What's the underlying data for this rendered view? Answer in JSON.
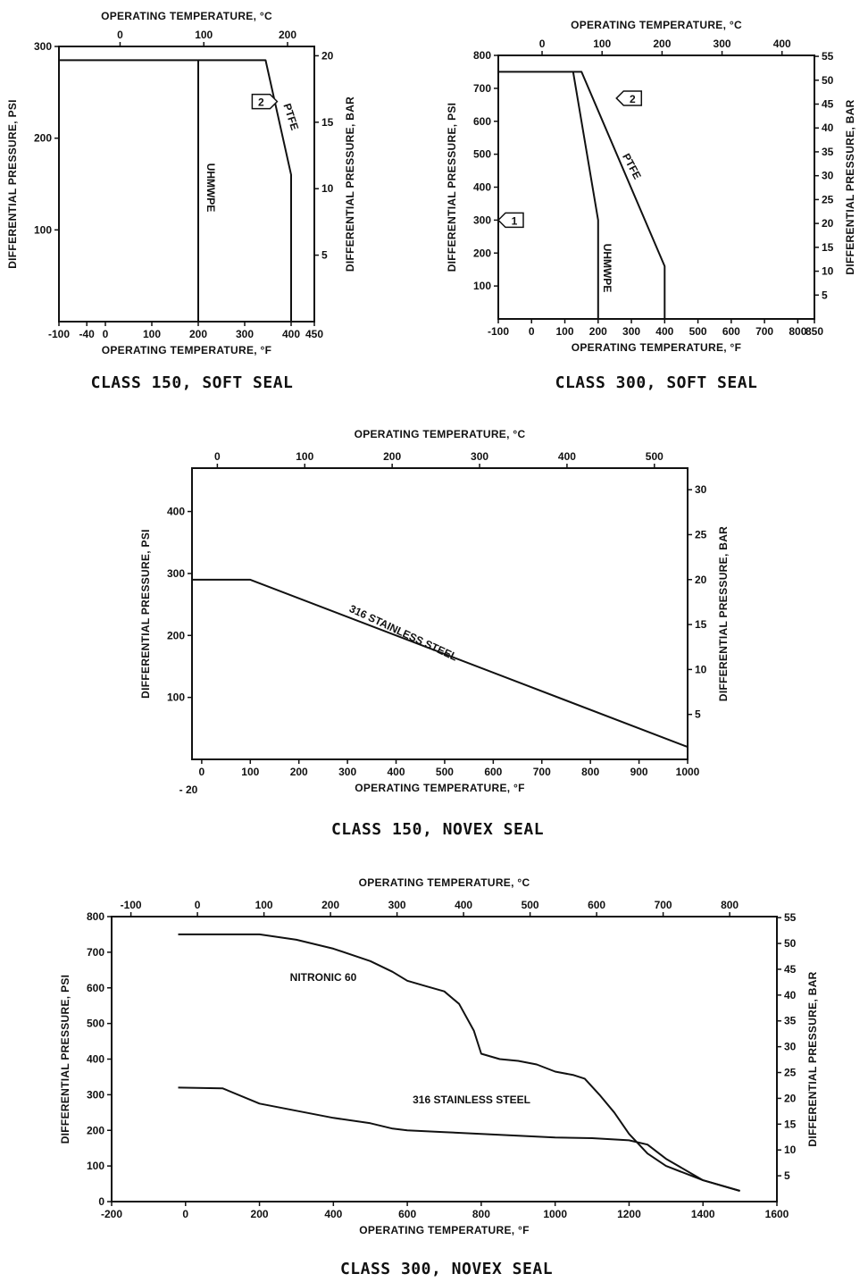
{
  "chart_data": [
    {
      "id": "c1",
      "type": "line",
      "caption": "CLASS 150, SOFT SEAL",
      "xlabel": "OPERATING TEMPERATURE, °F",
      "x2label": "OPERATING TEMPERATURE, °C",
      "ylabel": "DIFFERENTIAL PRESSURE, PSI",
      "y2label": "DIFFERENTIAL PRESSURE, BAR",
      "xlim": [
        -100,
        450
      ],
      "ylim": [
        0,
        300
      ],
      "x2lim": [
        -73,
        232
      ],
      "y2lim": [
        0,
        20.7
      ],
      "xticks": [
        {
          "v": -100,
          "label": "-100"
        },
        {
          "v": -40,
          "label": "-40"
        },
        {
          "v": 0,
          "label": "0"
        },
        {
          "v": 100,
          "label": "100"
        },
        {
          "v": 200,
          "label": "200"
        },
        {
          "v": 300,
          "label": "300"
        },
        {
          "v": 400,
          "label": "400"
        },
        {
          "v": 450,
          "label": "450"
        }
      ],
      "yticks": [
        {
          "v": 100,
          "label": "100"
        },
        {
          "v": 200,
          "label": "200"
        },
        {
          "v": 300,
          "label": "300"
        }
      ],
      "x2ticks": [
        {
          "v": 0,
          "label": "0"
        },
        {
          "v": 100,
          "label": "100"
        },
        {
          "v": 200,
          "label": "200"
        }
      ],
      "y2ticks": [
        {
          "v": 5,
          "label": "5"
        },
        {
          "v": 10,
          "label": "10"
        },
        {
          "v": 15,
          "label": "15"
        },
        {
          "v": 20,
          "label": "20"
        }
      ],
      "series": [
        {
          "name": "UHMWPE",
          "x": [
            -100,
            -100,
            200,
            200
          ],
          "y": [
            0,
            285,
            285,
            0
          ]
        },
        {
          "name": "PTFE",
          "x": [
            200,
            345,
            400,
            400
          ],
          "y": [
            285,
            285,
            160,
            0
          ]
        }
      ],
      "annotations": [
        {
          "text": "2",
          "x": 370,
          "y": 240
        }
      ]
    },
    {
      "id": "c2",
      "type": "line",
      "caption": "CLASS 300, SOFT SEAL",
      "xlabel": "OPERATING TEMPERATURE, °F",
      "x2label": "OPERATING TEMPERATURE, °C",
      "ylabel": "DIFFERENTIAL PRESSURE, PSI",
      "y2label": "DIFFERENTIAL PRESSURE, BAR",
      "xlim": [
        -100,
        850
      ],
      "ylim": [
        0,
        800
      ],
      "x2lim": [
        -73,
        454
      ],
      "y2lim": [
        0,
        55.2
      ],
      "xticks": [
        {
          "v": -100,
          "label": "-100"
        },
        {
          "v": 0,
          "label": "0"
        },
        {
          "v": 100,
          "label": "100"
        },
        {
          "v": 200,
          "label": "200"
        },
        {
          "v": 300,
          "label": "300"
        },
        {
          "v": 400,
          "label": "400"
        },
        {
          "v": 500,
          "label": "500"
        },
        {
          "v": 600,
          "label": "600"
        },
        {
          "v": 700,
          "label": "700"
        },
        {
          "v": 800,
          "label": "800"
        },
        {
          "v": 850,
          "label": "850"
        }
      ],
      "yticks": [
        {
          "v": 100,
          "label": "100"
        },
        {
          "v": 200,
          "label": "200"
        },
        {
          "v": 300,
          "label": "300"
        },
        {
          "v": 400,
          "label": "400"
        },
        {
          "v": 500,
          "label": "500"
        },
        {
          "v": 600,
          "label": "600"
        },
        {
          "v": 700,
          "label": "700"
        },
        {
          "v": 800,
          "label": "800"
        }
      ],
      "x2ticks": [
        {
          "v": 0,
          "label": "0"
        },
        {
          "v": 100,
          "label": "100"
        },
        {
          "v": 200,
          "label": "200"
        },
        {
          "v": 300,
          "label": "300"
        },
        {
          "v": 400,
          "label": "400"
        }
      ],
      "y2ticks": [
        {
          "v": 5,
          "label": "5"
        },
        {
          "v": 10,
          "label": "10"
        },
        {
          "v": 15,
          "label": "15"
        },
        {
          "v": 20,
          "label": "20"
        },
        {
          "v": 25,
          "label": "25"
        },
        {
          "v": 30,
          "label": "30"
        },
        {
          "v": 35,
          "label": "35"
        },
        {
          "v": 40,
          "label": "40"
        },
        {
          "v": 45,
          "label": "45"
        },
        {
          "v": 50,
          "label": "50"
        },
        {
          "v": 55,
          "label": "55"
        }
      ],
      "series": [
        {
          "name": "UHMWPE",
          "x": [
            -100,
            125,
            200,
            200
          ],
          "y": [
            750,
            750,
            300,
            0
          ]
        },
        {
          "name": "PTFE",
          "x": [
            125,
            150,
            400,
            400
          ],
          "y": [
            750,
            750,
            160,
            0
          ]
        }
      ],
      "annotations": [
        {
          "text": "1",
          "x": -100,
          "y": 300
        },
        {
          "text": "2",
          "x": 255,
          "y": 670
        }
      ]
    },
    {
      "id": "c3",
      "type": "line",
      "caption": "CLASS 150, NOVEX SEAL",
      "xlabel": "OPERATING TEMPERATURE, °F",
      "x2label": "OPERATING TEMPERATURE, °C",
      "ylabel": "DIFFERENTIAL PRESSURE, PSI",
      "y2label": "DIFFERENTIAL PRESSURE, BAR",
      "xlim": [
        -20,
        1000
      ],
      "ylim": [
        0,
        470
      ],
      "x2lim": [
        -29,
        538
      ],
      "y2lim": [
        0,
        32.4
      ],
      "xticks": [
        {
          "v": 0,
          "label": "0"
        },
        {
          "v": 100,
          "label": "100"
        },
        {
          "v": 200,
          "label": "200"
        },
        {
          "v": 300,
          "label": "300"
        },
        {
          "v": 400,
          "label": "400"
        },
        {
          "v": 500,
          "label": "500"
        },
        {
          "v": 600,
          "label": "600"
        },
        {
          "v": 700,
          "label": "700"
        },
        {
          "v": 800,
          "label": "800"
        },
        {
          "v": 900,
          "label": "900"
        },
        {
          "v": 1000,
          "label": "1000"
        }
      ],
      "xstart_label": "- 20",
      "yticks": [
        {
          "v": 100,
          "label": "100"
        },
        {
          "v": 200,
          "label": "200"
        },
        {
          "v": 300,
          "label": "300"
        },
        {
          "v": 400,
          "label": "400"
        }
      ],
      "x2ticks": [
        {
          "v": 0,
          "label": "0"
        },
        {
          "v": 100,
          "label": "100"
        },
        {
          "v": 200,
          "label": "200"
        },
        {
          "v": 300,
          "label": "300"
        },
        {
          "v": 400,
          "label": "400"
        },
        {
          "v": 500,
          "label": "500"
        }
      ],
      "y2ticks": [
        {
          "v": 5,
          "label": "5"
        },
        {
          "v": 10,
          "label": "10"
        },
        {
          "v": 15,
          "label": "15"
        },
        {
          "v": 20,
          "label": "20"
        },
        {
          "v": 25,
          "label": "25"
        },
        {
          "v": 30,
          "label": "30"
        }
      ],
      "series": [
        {
          "name": "316 STAINLESS STEEL",
          "x": [
            -20,
            100,
            1000
          ],
          "y": [
            290,
            290,
            20
          ]
        }
      ],
      "annotations": []
    },
    {
      "id": "c4",
      "type": "line",
      "caption": "CLASS 300, NOVEX SEAL",
      "xlabel": "OPERATING TEMPERATURE, °F",
      "x2label": "OPERATING TEMPERATURE, °C",
      "ylabel": "DIFFERENTIAL PRESSURE, PSI",
      "y2label": "DIFFERENTIAL PRESSURE, BAR",
      "xlim": [
        -200,
        1600
      ],
      "ylim": [
        0,
        800
      ],
      "x2lim": [
        -129,
        871
      ],
      "y2lim": [
        0,
        55.2
      ],
      "xticks": [
        {
          "v": -200,
          "label": "-200"
        },
        {
          "v": 0,
          "label": "0"
        },
        {
          "v": 200,
          "label": "200"
        },
        {
          "v": 400,
          "label": "400"
        },
        {
          "v": 600,
          "label": "600"
        },
        {
          "v": 800,
          "label": "800"
        },
        {
          "v": 1000,
          "label": "1000"
        },
        {
          "v": 1200,
          "label": "1200"
        },
        {
          "v": 1400,
          "label": "1400"
        },
        {
          "v": 1600,
          "label": "1600"
        }
      ],
      "yticks": [
        {
          "v": 0,
          "label": "0"
        },
        {
          "v": 100,
          "label": "100"
        },
        {
          "v": 200,
          "label": "200"
        },
        {
          "v": 300,
          "label": "300"
        },
        {
          "v": 400,
          "label": "400"
        },
        {
          "v": 500,
          "label": "500"
        },
        {
          "v": 600,
          "label": "600"
        },
        {
          "v": 700,
          "label": "700"
        },
        {
          "v": 800,
          "label": "800"
        }
      ],
      "x2ticks": [
        {
          "v": -100,
          "label": "-100"
        },
        {
          "v": 0,
          "label": "0"
        },
        {
          "v": 100,
          "label": "100"
        },
        {
          "v": 200,
          "label": "200"
        },
        {
          "v": 300,
          "label": "300"
        },
        {
          "v": 400,
          "label": "400"
        },
        {
          "v": 500,
          "label": "500"
        },
        {
          "v": 600,
          "label": "600"
        },
        {
          "v": 700,
          "label": "700"
        },
        {
          "v": 800,
          "label": "800"
        }
      ],
      "y2ticks": [
        {
          "v": 5,
          "label": "5"
        },
        {
          "v": 10,
          "label": "10"
        },
        {
          "v": 15,
          "label": "15"
        },
        {
          "v": 20,
          "label": "20"
        },
        {
          "v": 25,
          "label": "25"
        },
        {
          "v": 30,
          "label": "30"
        },
        {
          "v": 35,
          "label": "35"
        },
        {
          "v": 40,
          "label": "40"
        },
        {
          "v": 45,
          "label": "45"
        },
        {
          "v": 50,
          "label": "50"
        },
        {
          "v": 55,
          "label": "55"
        }
      ],
      "series": [
        {
          "name": "NITRONIC 60",
          "x": [
            -20,
            100,
            200,
            300,
            400,
            500,
            560,
            600,
            650,
            700,
            740,
            780,
            800,
            850,
            900,
            950,
            1000,
            1050,
            1080,
            1120,
            1160,
            1200,
            1250,
            1300,
            1400,
            1500
          ],
          "y": [
            750,
            750,
            750,
            735,
            710,
            675,
            645,
            620,
            605,
            590,
            555,
            480,
            415,
            400,
            395,
            385,
            365,
            355,
            345,
            300,
            250,
            190,
            135,
            100,
            60,
            30
          ]
        },
        {
          "name": "316 STAINLESS STEEL",
          "x": [
            -20,
            100,
            200,
            300,
            400,
            500,
            560,
            600,
            700,
            800,
            900,
            1000,
            1100,
            1200,
            1250,
            1300,
            1400,
            1500
          ],
          "y": [
            320,
            318,
            275,
            255,
            235,
            220,
            205,
            200,
            195,
            190,
            185,
            180,
            178,
            172,
            160,
            120,
            60,
            30
          ]
        }
      ],
      "annotations": []
    }
  ]
}
